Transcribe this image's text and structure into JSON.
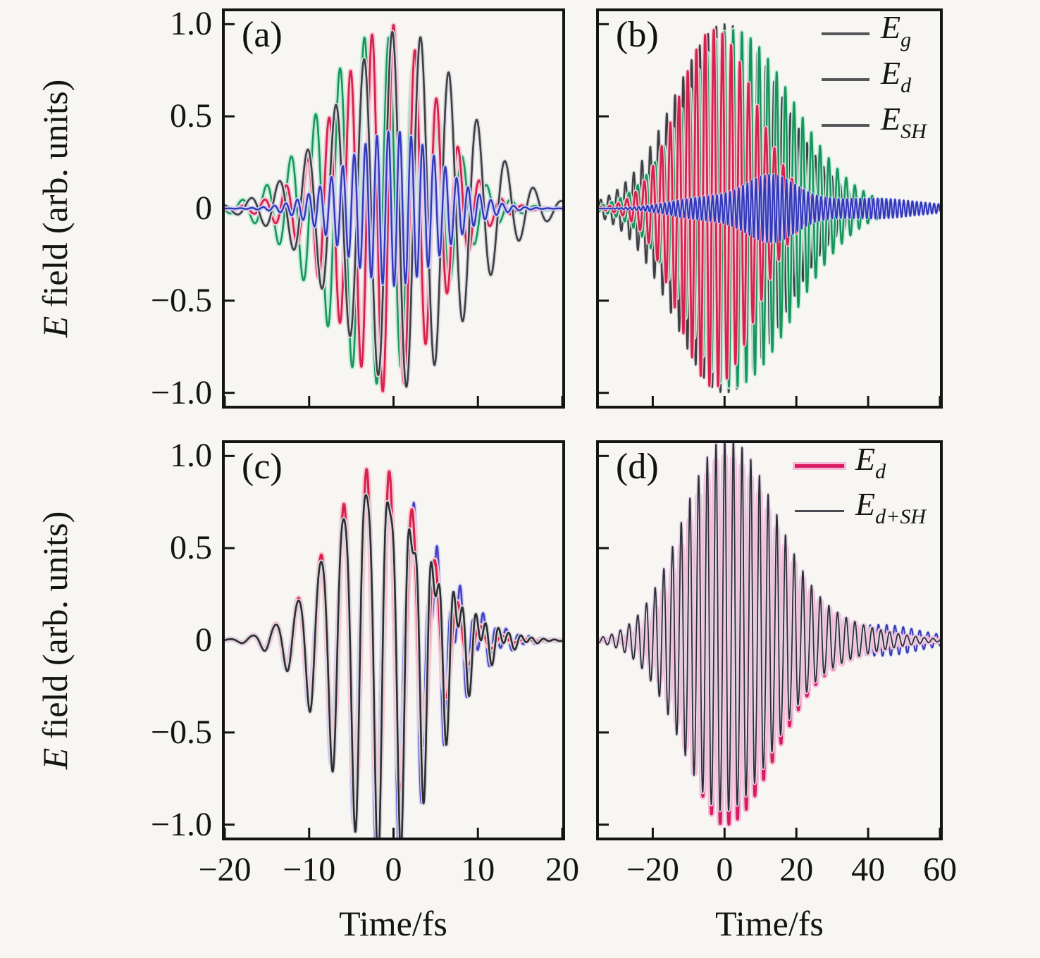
{
  "figure": {
    "background": "#f7f6f3",
    "ylabel_italic": "E",
    "ylabel_rest": " field (arb. units)",
    "xlabel": "Time/fs",
    "axis_color": "#141414"
  },
  "chart_data": [
    {
      "id": "a",
      "type": "line",
      "panel_label": "(a)",
      "xlim": [
        -20,
        20
      ],
      "ylim": [
        -1.07,
        1.07
      ],
      "xticks": {
        "values": [
          -20,
          -10,
          0,
          10,
          20
        ],
        "labels": [
          "−20",
          "−10",
          "0",
          "10",
          "20"
        ],
        "show_labels": false
      },
      "yticks": {
        "values": [
          1.0,
          0.5,
          0,
          -0.5,
          -1.0
        ],
        "labels": [
          "1.0",
          "0.5",
          "0",
          "−0.5",
          "−1.0"
        ],
        "show_labels": true
      },
      "series": [
        {
          "name": "E_g",
          "color": "#18955b",
          "halo": "#c2edd9",
          "width": 2.6,
          "halo_width": 7,
          "components": [
            {
              "A": 0.95,
              "c": -2,
              "sL": 6.5,
              "sR": 6.5,
              "T": 2.9,
              "t0": -2,
              "phi": -1.5708
            }
          ]
        },
        {
          "name": "E_d",
          "color": "#d6224c",
          "halo": "#f9c7d4",
          "width": 2.8,
          "halo_width": 7,
          "components": [
            {
              "A": 1.0,
              "c": -0.5,
              "sL": 6.0,
              "sR": 5.5,
              "T": 2.55,
              "t0": 0,
              "phi": 1.5708
            }
          ]
        },
        {
          "name": "carrier-gray",
          "color": "#3e3e44",
          "halo": "#dadadf",
          "width": 2.6,
          "halo_width": 6,
          "components": [
            {
              "A": 0.97,
              "c": 1,
              "sL": 7.5,
              "sR": 7.5,
              "T": 3.35,
              "t0": 3.2,
              "phi": 1.5708
            }
          ]
        },
        {
          "name": "E_SH",
          "color": "#3338b8",
          "halo": "#cccef5",
          "width": 2.4,
          "halo_width": 6,
          "components": [
            {
              "A": 0.42,
              "c": 0,
              "sL": 5.5,
              "sR": 5.5,
              "T": 1.35,
              "t0": 0.4,
              "phi": 0
            }
          ]
        }
      ]
    },
    {
      "id": "b",
      "type": "line",
      "panel_label": "(b)",
      "xlim": [
        -35,
        60
      ],
      "ylim": [
        -1.07,
        1.07
      ],
      "xticks": {
        "values": [
          -20,
          0,
          20,
          40,
          60
        ],
        "labels": [
          "−20",
          "0",
          "20",
          "40",
          "60"
        ],
        "show_labels": false
      },
      "yticks": {
        "values": [
          1.0,
          0.5,
          0,
          -0.5,
          -1.0
        ],
        "labels": [
          "1.0",
          "0.5",
          "0",
          "−0.5",
          "−1.0"
        ],
        "show_labels": false
      },
      "legend": {
        "position": "top-right",
        "entries": [
          {
            "main": "E",
            "sub": "g",
            "marker_color": "#55565a",
            "marker_thickness": 4,
            "marker_halo": "none"
          },
          {
            "main": "E",
            "sub": "d",
            "marker_color": "#55565a",
            "marker_thickness": 4,
            "marker_halo": "none"
          },
          {
            "main": "E",
            "sub": "SH",
            "marker_color": "#55565a",
            "marker_thickness": 4,
            "marker_halo": "none"
          }
        ]
      },
      "series": [
        {
          "name": "carrier-gray",
          "color": "#3e3e44",
          "halo": "#dadadf",
          "width": 2.4,
          "halo_width": 5,
          "components": [
            {
              "A": 1.0,
              "c": 0,
              "sL": 14,
              "sR": 16,
              "T": 2.3,
              "t0": 0,
              "phi": 1.5708
            }
          ]
        },
        {
          "name": "E_g",
          "color": "#18955b",
          "halo": "#c2edd9",
          "width": 2.6,
          "halo_width": 6,
          "components": [
            {
              "A": 0.97,
              "c": 2,
              "sL": 13,
              "sR": 17,
              "T": 2.42,
              "t0": 0,
              "phi": 1.5708
            }
          ]
        },
        {
          "name": "E_d",
          "color": "#d6224c",
          "halo": "#f9c7d4",
          "width": 2.8,
          "halo_width": 6,
          "components": [
            {
              "A": 0.97,
              "c": -3,
              "sL": 10,
              "sR": 11.5,
              "T": 2.42,
              "t0": -3,
              "phi": 1.5708
            }
          ]
        },
        {
          "name": "E_SH",
          "color": "#3338b8",
          "halo": "#cccef5",
          "width": 2.2,
          "halo_width": 4,
          "components": [
            {
              "A": 0.06,
              "c": -5,
              "sL": 10,
              "sR": 10,
              "T": 1.21,
              "t0": 0,
              "phi": 0
            },
            {
              "A": 0.16,
              "c": 13,
              "sL": 7,
              "sR": 7,
              "T": 1.21,
              "t0": 0,
              "phi": 0
            },
            {
              "A": 0.045,
              "c": 32,
              "sL": 12,
              "sR": 12,
              "T": 1.21,
              "t0": 0,
              "phi": 0
            },
            {
              "A": 0.03,
              "c": 48,
              "sL": 8,
              "sR": 14,
              "T": 1.21,
              "t0": 0,
              "phi": 0
            }
          ]
        }
      ]
    },
    {
      "id": "c",
      "type": "line",
      "panel_label": "(c)",
      "xlim": [
        -20,
        20
      ],
      "ylim": [
        -1.07,
        1.07
      ],
      "xticks": {
        "values": [
          -20,
          -10,
          0,
          10,
          20
        ],
        "labels": [
          "−20",
          "−10",
          "0",
          "10",
          "20"
        ],
        "show_labels": true
      },
      "yticks": {
        "values": [
          1.0,
          0.5,
          0,
          -0.5,
          -1.0
        ],
        "labels": [
          "1.0",
          "0.5",
          "0",
          "−0.5",
          "−1.0"
        ],
        "show_labels": true
      },
      "xlabel": "Time/fs",
      "series": [
        {
          "name": "blue-accent",
          "color": "#4440c4",
          "halo": "#cfd0f6",
          "width": 2.6,
          "halo_width": 6,
          "components": [
            {
              "A": 0.97,
              "c": -2,
              "sL": 5.5,
              "sR": 5.5,
              "T": 2.7,
              "t0": -0.6,
              "phi": 1.5708
            },
            {
              "A": 0.32,
              "c": 2,
              "sL": 6,
              "sR": 6,
              "T": 1.35,
              "t0": 0,
              "phi": 2.1
            }
          ]
        },
        {
          "name": "E_d",
          "color": "#d6224c",
          "halo": "#f9c7d4",
          "width": 3.2,
          "halo_width": 8,
          "components": [
            {
              "A": 0.95,
              "c": -2,
              "sL": 5.5,
              "sR": 5.5,
              "T": 2.7,
              "t0": -0.5,
              "phi": 1.5708
            }
          ]
        },
        {
          "name": "E_d+SH",
          "color": "#2c2c31",
          "halo": "#d8d8dc",
          "width": 2.6,
          "halo_width": 6,
          "components": [
            {
              "A": 0.99,
              "c": -2,
              "sL": 5.5,
              "sR": 5.8,
              "T": 2.7,
              "t0": -0.5,
              "phi": 1.5708
            },
            {
              "A": 0.27,
              "c": 2,
              "sL": 6,
              "sR": 6,
              "T": 1.35,
              "t0": 0,
              "phi": 0.6
            }
          ]
        }
      ]
    },
    {
      "id": "d",
      "type": "line",
      "panel_label": "(d)",
      "xlim": [
        -35,
        60
      ],
      "ylim": [
        -1.07,
        1.07
      ],
      "xticks": {
        "values": [
          -20,
          0,
          20,
          40,
          60
        ],
        "labels": [
          "−20",
          "0",
          "20",
          "40",
          "60"
        ],
        "show_labels": true
      },
      "yticks": {
        "values": [
          1.0,
          0.5,
          0,
          -0.5,
          -1.0
        ],
        "labels": [
          "1.0",
          "0.5",
          "0",
          "−0.5",
          "−1.0"
        ],
        "show_labels": false
      },
      "xlabel": "Time/fs",
      "legend": {
        "position": "top-right",
        "entries": [
          {
            "main": "E",
            "sub": "d",
            "marker_color": "#d81b60",
            "marker_thickness": 5,
            "marker_halo": "#f6bbd6"
          },
          {
            "main": "E",
            "sub": "d+SH",
            "marker_color": "#4a4a52",
            "marker_thickness": 3,
            "marker_halo": "none"
          }
        ]
      },
      "series": [
        {
          "name": "tail-blue",
          "color": "#3338b8",
          "halo": "#cccef5",
          "width": 2.0,
          "halo_width": 4,
          "components": [
            {
              "A": 0.07,
              "c": 40,
              "sL": 9,
              "sR": 9,
              "T": 2.3,
              "t0": 40,
              "phi": 0
            },
            {
              "A": 0.035,
              "c": 52,
              "sL": 8,
              "sR": 10,
              "T": 2.3,
              "t0": 40,
              "phi": 0
            }
          ]
        },
        {
          "name": "E_d",
          "color": "#d81b60",
          "halo": "#f6bbd6",
          "width": 4.0,
          "halo_width": 9,
          "components": [
            {
              "A": 1.0,
              "c": 0,
              "sL": 10.5,
              "sR": 14.5,
              "T": 2.42,
              "t0": 0,
              "phi": 1.5708
            },
            {
              "A": 0.05,
              "c": 36,
              "sL": 9,
              "sR": 11,
              "T": 2.42,
              "t0": 0,
              "phi": 1.5708
            }
          ]
        },
        {
          "name": "E_d+SH",
          "color": "#2e2e3a",
          "halo": "#e6d5e6",
          "width": 1.8,
          "halo_width": 5,
          "components": [
            {
              "A": 1.0,
              "c": 0,
              "sL": 12,
              "sR": 14.5,
              "T": 2.42,
              "t0": 0,
              "phi": 1.5708
            },
            {
              "A": 0.12,
              "c": 5,
              "sL": 12,
              "sR": 12,
              "T": 1.21,
              "t0": 0,
              "phi": 0.9
            },
            {
              "A": 0.055,
              "c": 36,
              "sL": 9,
              "sR": 12,
              "T": 2.42,
              "t0": 0,
              "phi": 1.5708
            }
          ]
        }
      ]
    }
  ]
}
